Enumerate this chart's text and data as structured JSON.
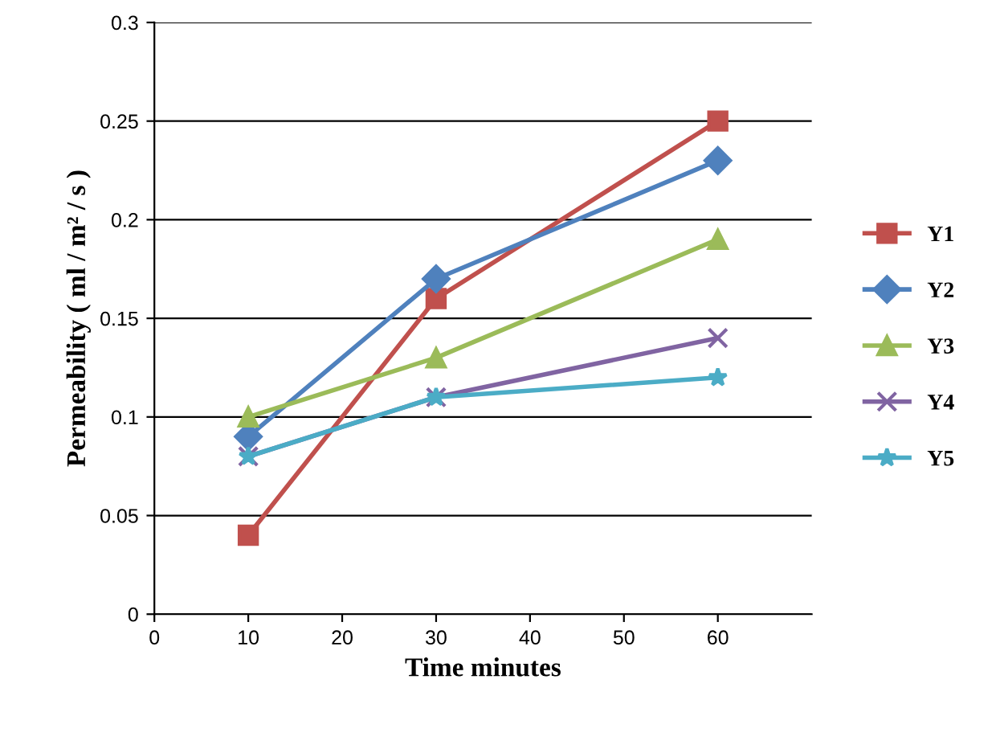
{
  "chart_data": {
    "type": "line",
    "xlabel": "Time minutes",
    "ylabel": "Permeability ( ml / m² / s )",
    "xlim": [
      0,
      70
    ],
    "xticks": [
      0,
      10,
      20,
      30,
      40,
      50,
      60
    ],
    "ylim": [
      0,
      0.3
    ],
    "yticks": [
      0,
      0.05,
      0.1,
      0.15,
      0.2,
      0.25,
      0.3
    ],
    "grid": "y",
    "legend": "right",
    "x": [
      10,
      30,
      60
    ],
    "series": [
      {
        "name": "Y1",
        "color": "#c0504d",
        "values": [
          0.04,
          0.16,
          0.25
        ],
        "marker": "square"
      },
      {
        "name": "Y2",
        "color": "#4f81bd",
        "values": [
          0.09,
          0.17,
          0.23
        ],
        "marker": "diamond"
      },
      {
        "name": "Y3",
        "color": "#9bbb59",
        "values": [
          0.1,
          0.13,
          0.19
        ],
        "marker": "triangle"
      },
      {
        "name": "Y4",
        "color": "#8064a2",
        "values": [
          0.08,
          0.11,
          0.14
        ],
        "marker": "cross"
      },
      {
        "name": "Y5",
        "color": "#4bacc6",
        "values": [
          0.08,
          0.11,
          0.12
        ],
        "marker": "star"
      }
    ]
  }
}
